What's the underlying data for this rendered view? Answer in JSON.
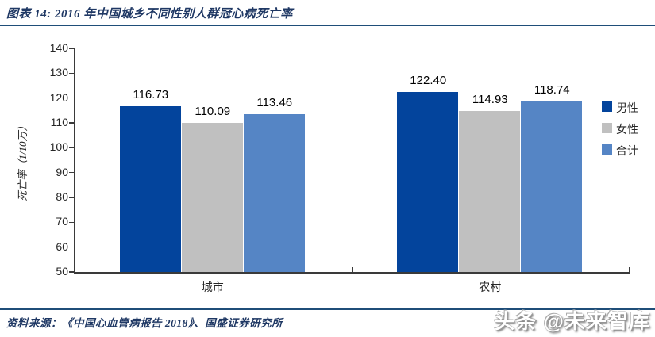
{
  "header": {
    "title": "图表 14:  2016 年中国城乡不同性别人群冠心病死亡率"
  },
  "footer": {
    "source": "资料来源：《中国心血管病报告 2018》、国盛证券研究所",
    "watermark": "头条 @未来智库"
  },
  "colors": {
    "male_bar": "#03449C",
    "female_bar": "#C0C0C0",
    "total_bar": "#5585C5",
    "title_text": "#1F3864",
    "rule_blue": "#1F4E79",
    "axis_gray": "#3A3A3A"
  },
  "chart_data": {
    "type": "bar",
    "title": "2016 年中国城乡不同性别人群冠心病死亡率",
    "categories": [
      "城市",
      "农村"
    ],
    "category_keys": [
      "urban",
      "rural"
    ],
    "series": [
      {
        "name": "男性",
        "key": "male",
        "color": "#03449C",
        "values": [
          116.73,
          122.4
        ]
      },
      {
        "name": "女性",
        "key": "female",
        "color": "#C0C0C0",
        "values": [
          110.09,
          114.93
        ]
      },
      {
        "name": "合计",
        "key": "total",
        "color": "#5585C5",
        "values": [
          113.46,
          118.74
        ]
      }
    ],
    "value_labels": [
      [
        "116.73",
        "110.09",
        "113.46"
      ],
      [
        "122.40",
        "114.93",
        "118.74"
      ]
    ],
    "xlabel": "",
    "ylabel": "死亡率（1/10万）",
    "ylim": [
      50,
      140
    ],
    "ytick_step": 10,
    "grid": false,
    "legend_position": "right"
  }
}
